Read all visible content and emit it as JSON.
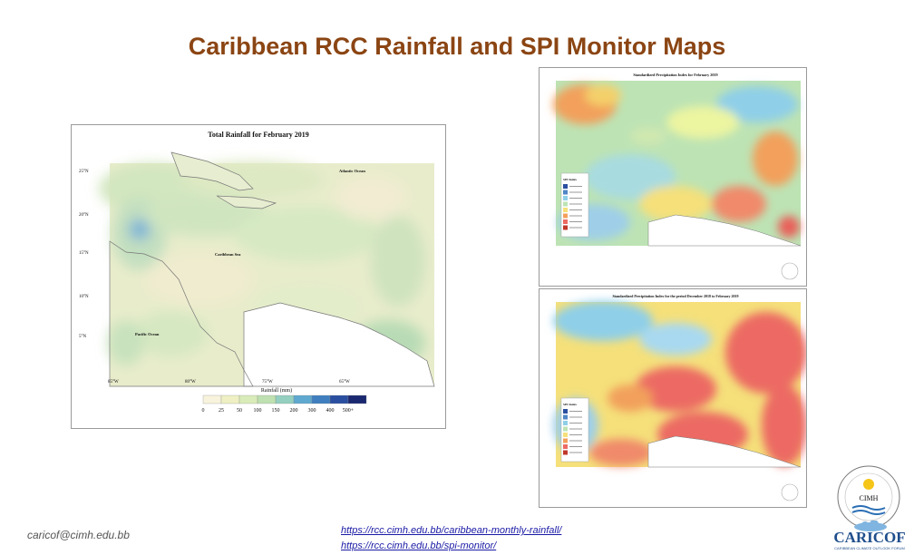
{
  "slide": {
    "title": "Caribbean RCC Rainfall and SPI Monitor Maps",
    "email": "caricof@cimh.edu.bb",
    "links": [
      "https://rcc.cimh.edu.bb/caribbean-monthly-rainfall/",
      "https://rcc.cimh.edu.bb/spi-monitor/"
    ]
  },
  "rainfall_map": {
    "title": "Total Rainfall for February 2019",
    "lat_labels": [
      "25°N",
      "20°N",
      "15°N",
      "10°N",
      "5°N"
    ],
    "lon_labels": [
      "85°W",
      "80°W",
      "75°W",
      "65°W"
    ],
    "region_labels": [
      "Atlantic Ocean",
      "Caribbean Sea",
      "Pacific Ocean"
    ],
    "xlabel": "Rainfall (mm)",
    "legend_values": [
      "0",
      "25",
      "50",
      "100",
      "150",
      "200",
      "300",
      "400",
      "500+"
    ],
    "legend_colors": [
      "#f7f3dc",
      "#eef0c4",
      "#d9ebb8",
      "#bfe0b0",
      "#94cfc0",
      "#5fa8cf",
      "#3f7fbf",
      "#2b4fa0",
      "#1a2870"
    ]
  },
  "spi_map_1": {
    "title": "Standardized Precipitation Index for February 2019",
    "legend_title": "SPI Index"
  },
  "spi_map_2": {
    "title": "Standardized Precipitation Index for the period December 2018 to February 2019",
    "legend_title": "SPI Index"
  },
  "logos": {
    "cimh": "CIMH",
    "caricof": "CARICOF",
    "caricof_sub": "CARIBBEAN CLIMATE OUTLOOK FORUM"
  },
  "colors": {
    "title": "#8b4513",
    "link": "#1a1aa6",
    "caricof_blue": "#1f4e8c"
  }
}
